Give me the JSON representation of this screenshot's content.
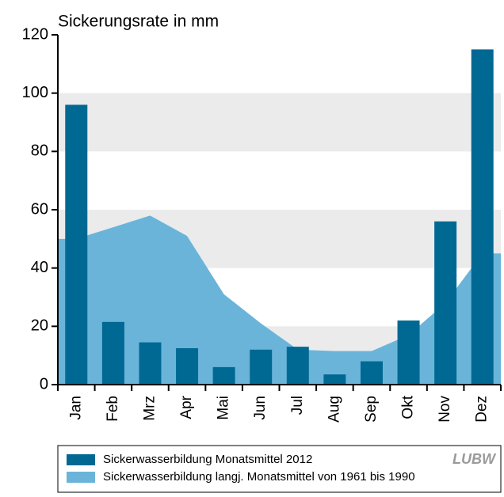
{
  "chart_data": {
    "type": "bar",
    "title": "Sickerungsrate in mm",
    "categories": [
      "Jan",
      "Feb",
      "Mrz",
      "Apr",
      "Mai",
      "Jun",
      "Jul",
      "Aug",
      "Sep",
      "Okt",
      "Nov",
      "Dez"
    ],
    "series": [
      {
        "name": "Sickerwasserbildung Monatsmittel 2012",
        "type": "bar",
        "color": "#006993",
        "values": [
          96,
          21.5,
          14.5,
          12.5,
          6,
          12,
          13,
          3.5,
          8,
          22,
          56,
          115
        ]
      },
      {
        "name": "Sickerwasserbildung langj. Monatsmittel von 1961 bis 1990",
        "type": "area",
        "color": "#6ab4da",
        "values": [
          50,
          54,
          58,
          51,
          31,
          21,
          12,
          11.5,
          11.5,
          17,
          28,
          45
        ]
      }
    ],
    "ylim": [
      0,
      120
    ],
    "yticks": [
      0,
      20,
      40,
      60,
      80,
      100,
      120
    ],
    "grid": true,
    "grid_color": "#ebebeb",
    "logo": "LUBW"
  }
}
